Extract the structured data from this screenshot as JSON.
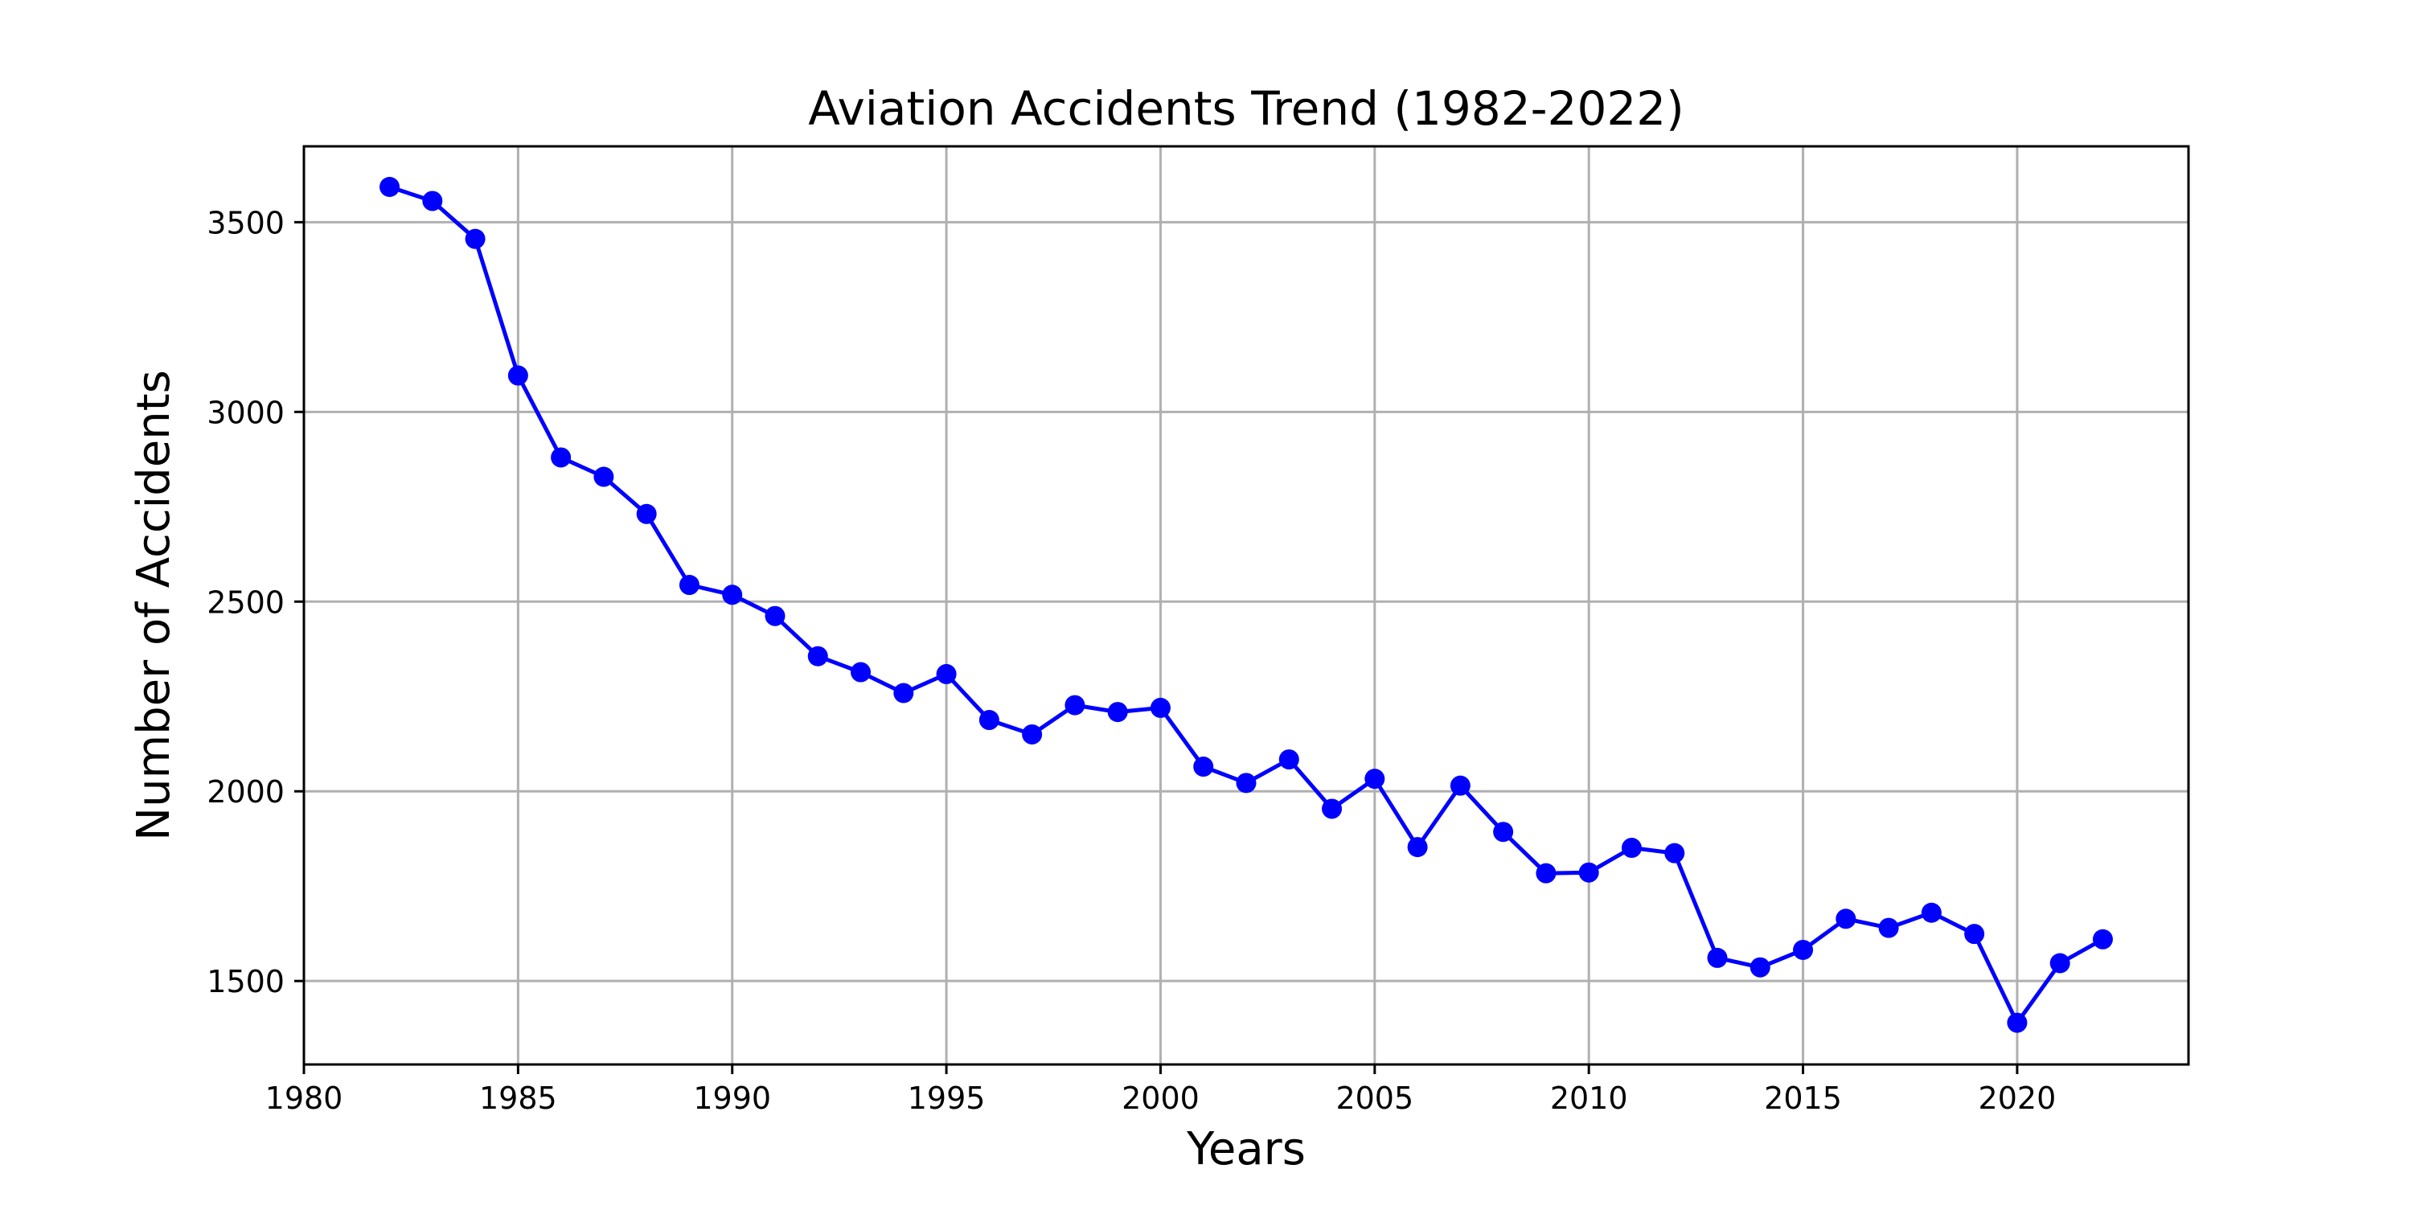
{
  "chart_data": {
    "type": "line",
    "title": "Aviation Accidents Trend (1982-2022)",
    "xlabel": "Years",
    "ylabel": "Number of Accidents",
    "xlim": [
      1980,
      2024
    ],
    "ylim": [
      1280,
      3700
    ],
    "xticks": [
      1980,
      1985,
      1990,
      1995,
      2000,
      2005,
      2010,
      2015,
      2020
    ],
    "yticks": [
      1500,
      2000,
      2500,
      3000,
      3500
    ],
    "xtick_labels": [
      "1980",
      "1985",
      "1990",
      "1995",
      "2000",
      "2005",
      "2010",
      "2015",
      "2020"
    ],
    "ytick_labels": [
      "1500",
      "2000",
      "2500",
      "3000",
      "3500"
    ],
    "grid": true,
    "color": "#0000ff",
    "marker": "circle",
    "series": [
      {
        "x": [
          1982,
          1983,
          1984,
          1985,
          1986,
          1987,
          1988,
          1989,
          1990,
          1991,
          1992,
          1993,
          1994,
          1995,
          1996,
          1997,
          1998,
          1999,
          2000,
          2001,
          2002,
          2003,
          2004,
          2005,
          2006,
          2007,
          2008,
          2009,
          2010,
          2011,
          2012,
          2013,
          2014,
          2015,
          2016,
          2017,
          2018,
          2019,
          2020,
          2021,
          2022
        ],
        "values": [
          3593,
          3556,
          3456,
          3096,
          2880,
          2829,
          2731,
          2544,
          2518,
          2462,
          2356,
          2314,
          2259,
          2309,
          2188,
          2150,
          2227,
          2209,
          2220,
          2065,
          2022,
          2084,
          1954,
          2033,
          1853,
          2015,
          1893,
          1784,
          1786,
          1851,
          1837,
          1561,
          1536,
          1582,
          1664,
          1640,
          1680,
          1624,
          1390,
          1547,
          1610
        ]
      }
    ]
  }
}
